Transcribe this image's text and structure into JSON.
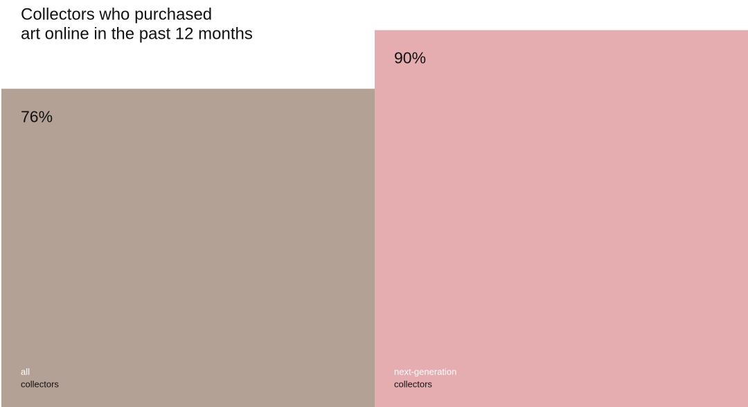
{
  "chart_data": {
    "type": "bar",
    "title": [
      "Collectors who purchased",
      "art online in the past 12 months"
    ],
    "categories": [
      [
        "all",
        "collectors"
      ],
      [
        "next-generation",
        "collectors"
      ]
    ],
    "values": [
      76,
      90
    ],
    "value_labels": [
      "76%",
      "90%"
    ],
    "colors": [
      "#b3a195",
      "#e5adb0"
    ],
    "ylim": [
      0,
      100
    ]
  }
}
